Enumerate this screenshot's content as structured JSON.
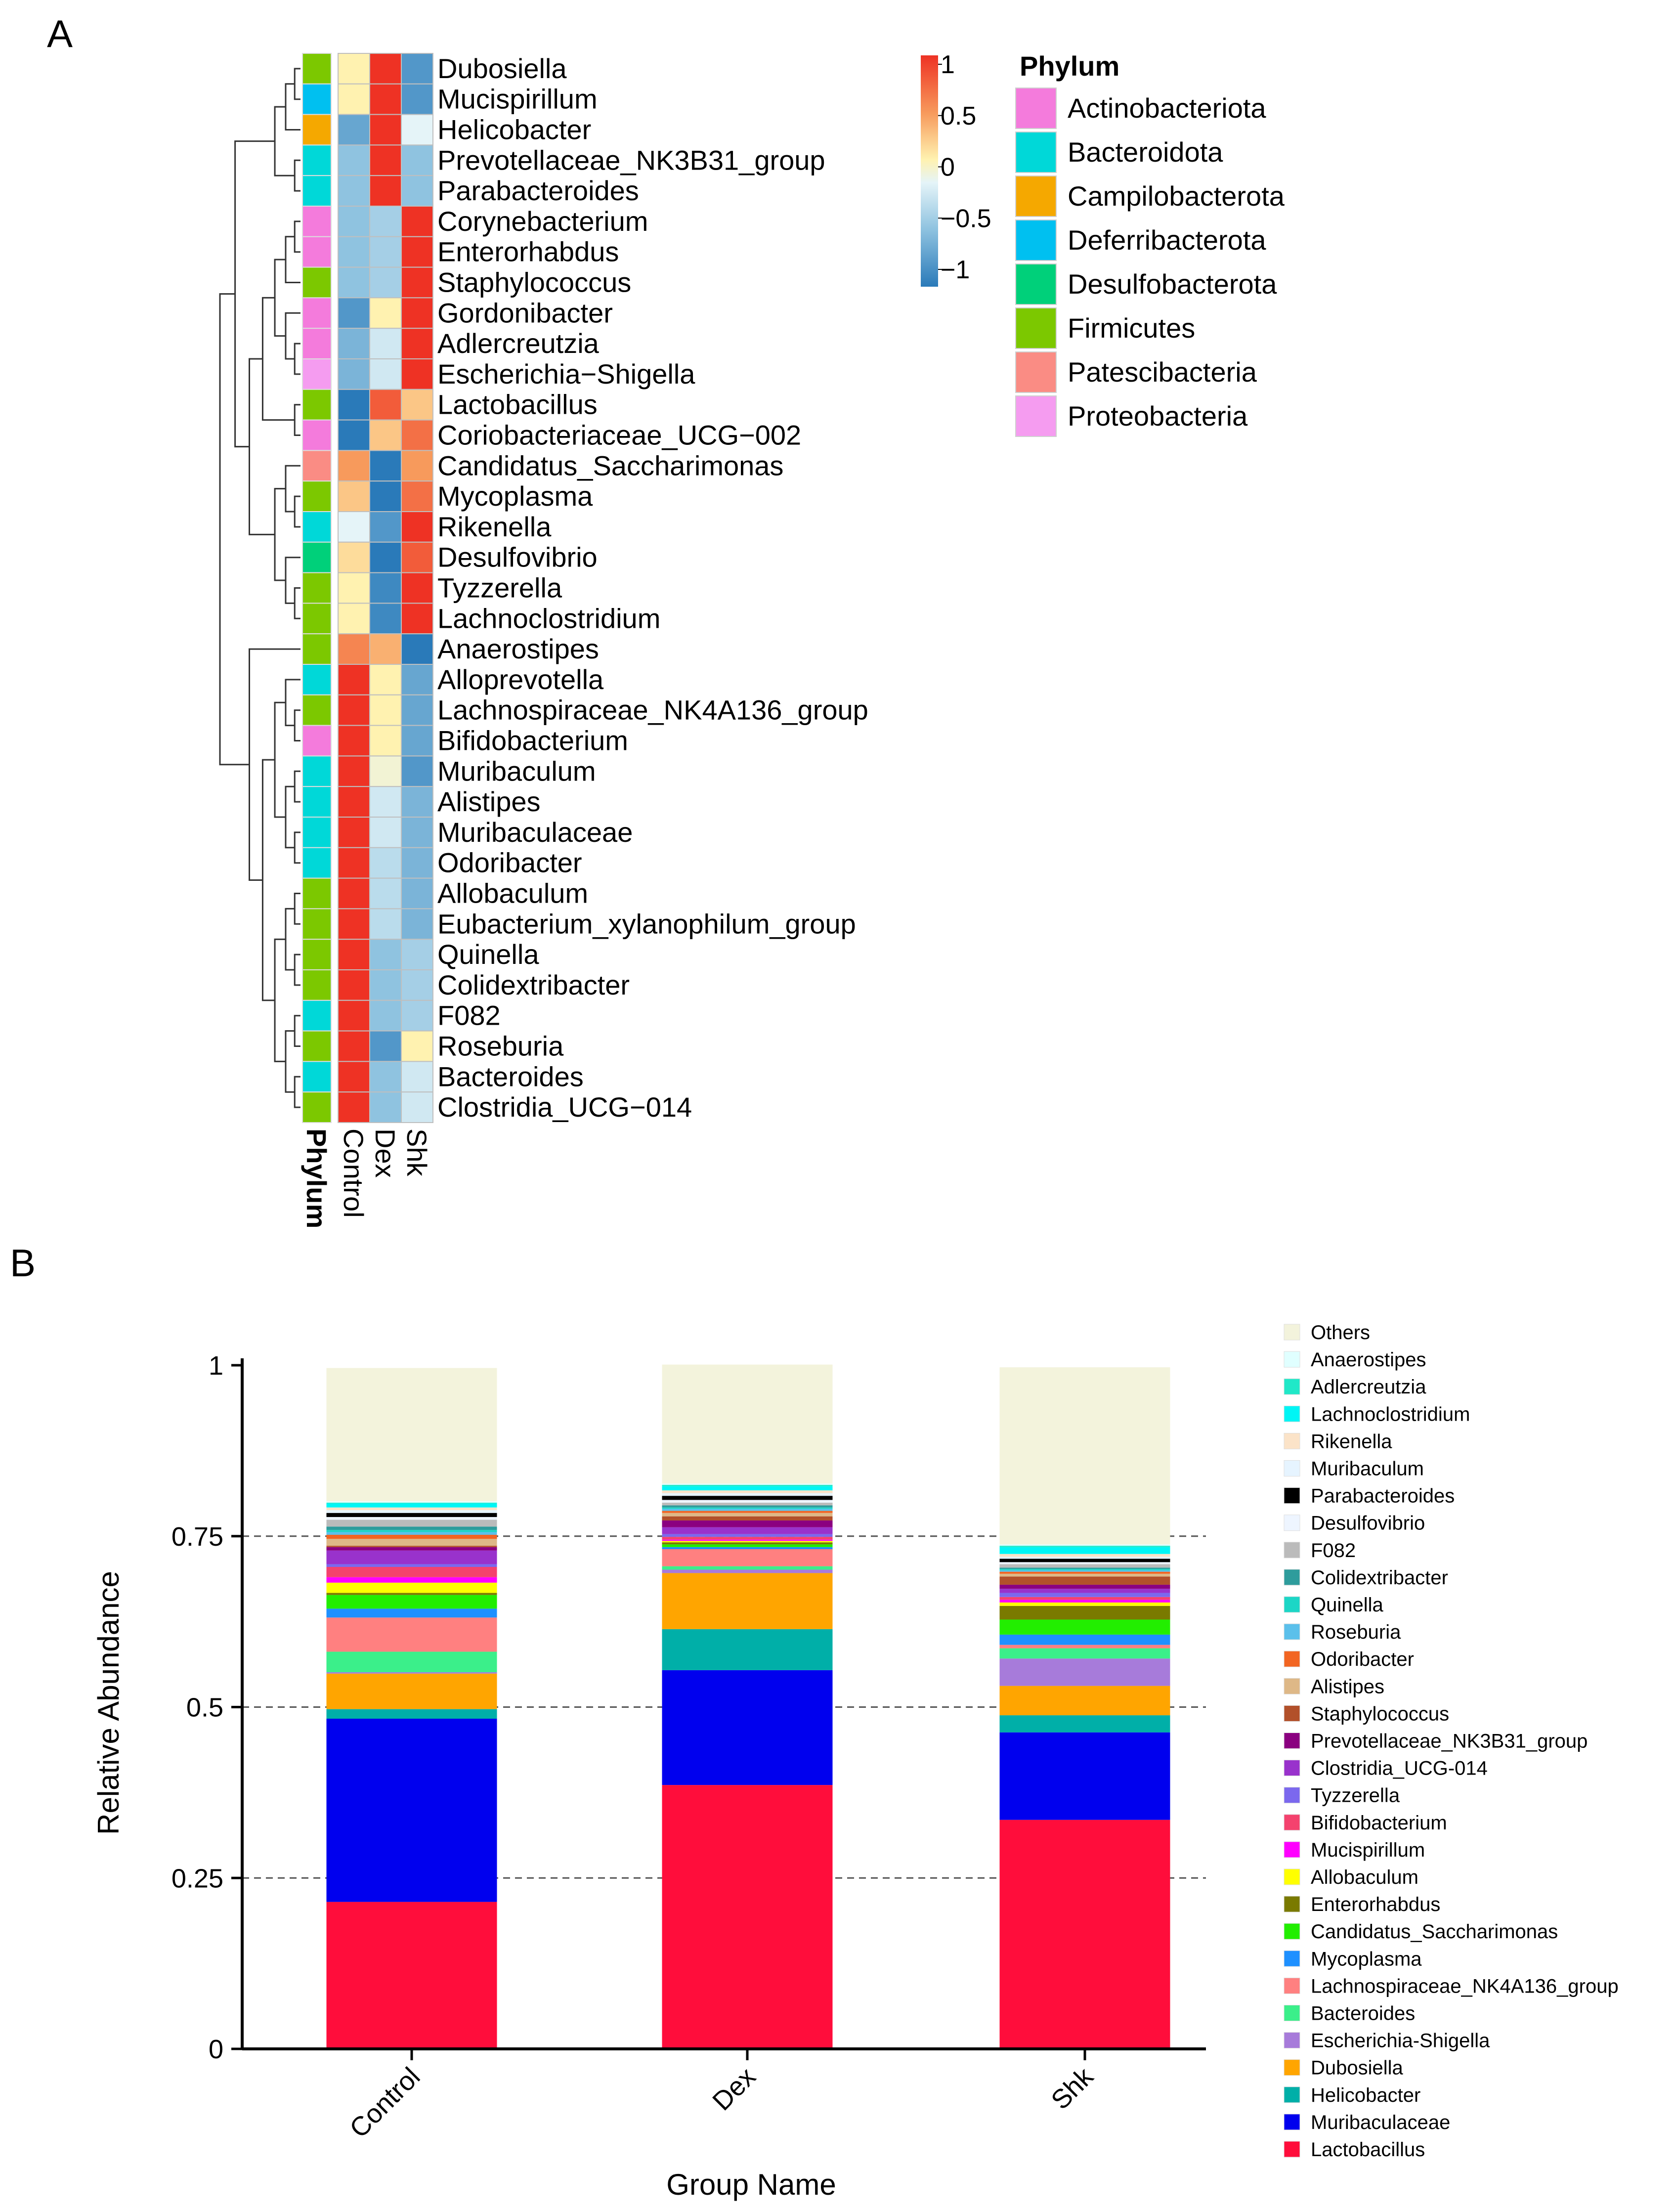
{
  "panel_a": {
    "letter": "A",
    "legend_title": "Phylum",
    "phylum_axis_label": "Phylum",
    "columns": [
      "Control",
      "Dex",
      "Shk"
    ],
    "colorbar": {
      "ticks": [
        {
          "value": 1,
          "label": "1"
        },
        {
          "value": 0.5,
          "label": "0.5"
        },
        {
          "value": 0,
          "label": "0"
        },
        {
          "value": -0.5,
          "label": "−0.5"
        },
        {
          "value": -1,
          "label": "−1"
        }
      ]
    },
    "phyla": [
      {
        "name": "Actinobacteriota",
        "color": "#F47BDC"
      },
      {
        "name": "Bacteroidota",
        "color": "#00D8D8"
      },
      {
        "name": "Campilobacterota",
        "color": "#F5A800"
      },
      {
        "name": "Deferribacterota",
        "color": "#00C0F0"
      },
      {
        "name": "Desulfobacterota",
        "color": "#00D07A"
      },
      {
        "name": "Firmicutes",
        "color": "#7CC800"
      },
      {
        "name": "Patescibacteria",
        "color": "#FA8C84"
      },
      {
        "name": "Proteobacteria",
        "color": "#F59CF0"
      }
    ],
    "rows": [
      {
        "genus": "Dubosiella",
        "phylum": "Firmicutes",
        "values": [
          0.1,
          1.0,
          -0.8
        ]
      },
      {
        "genus": "Mucispirillum",
        "phylum": "Deferribacterota",
        "values": [
          0.1,
          1.0,
          -0.8
        ]
      },
      {
        "genus": "Helicobacter",
        "phylum": "Campilobacterota",
        "values": [
          -0.7,
          1.0,
          -0.1
        ]
      },
      {
        "genus": "Prevotellaceae_NK3B31_group",
        "phylum": "Bacteroidota",
        "values": [
          -0.5,
          1.0,
          -0.5
        ]
      },
      {
        "genus": "Parabacteroides",
        "phylum": "Bacteroidota",
        "values": [
          -0.5,
          1.0,
          -0.5
        ]
      },
      {
        "genus": "Corynebacterium",
        "phylum": "Actinobacteriota",
        "values": [
          -0.5,
          -0.4,
          1.0
        ]
      },
      {
        "genus": "Enterorhabdus",
        "phylum": "Actinobacteriota",
        "values": [
          -0.5,
          -0.4,
          1.0
        ]
      },
      {
        "genus": "Staphylococcus",
        "phylum": "Firmicutes",
        "values": [
          -0.5,
          -0.4,
          1.0
        ]
      },
      {
        "genus": "Gordonibacter",
        "phylum": "Actinobacteriota",
        "values": [
          -0.8,
          0.1,
          1.0
        ]
      },
      {
        "genus": "Adlercreutzia",
        "phylum": "Actinobacteriota",
        "values": [
          -0.6,
          -0.2,
          1.0
        ]
      },
      {
        "genus": "Escherichia−Shigella",
        "phylum": "Proteobacteria",
        "values": [
          -0.6,
          -0.2,
          1.0
        ]
      },
      {
        "genus": "Lactobacillus",
        "phylum": "Firmicutes",
        "values": [
          -1.0,
          0.8,
          0.3
        ]
      },
      {
        "genus": "Coriobacteriaceae_UCG−002",
        "phylum": "Actinobacteriota",
        "values": [
          -1.0,
          0.3,
          0.7
        ]
      },
      {
        "genus": "Candidatus_Saccharimonas",
        "phylum": "Patescibacteria",
        "values": [
          0.5,
          -1.0,
          0.5
        ]
      },
      {
        "genus": "Mycoplasma",
        "phylum": "Firmicutes",
        "values": [
          0.3,
          -1.0,
          0.7
        ]
      },
      {
        "genus": "Rikenella",
        "phylum": "Bacteroidota",
        "values": [
          -0.1,
          -0.8,
          1.0
        ]
      },
      {
        "genus": "Desulfovibrio",
        "phylum": "Desulfobacterota",
        "values": [
          0.2,
          -1.0,
          0.8
        ]
      },
      {
        "genus": "Tyzzerella",
        "phylum": "Firmicutes",
        "values": [
          0.1,
          -0.9,
          1.0
        ]
      },
      {
        "genus": "Lachnoclostridium",
        "phylum": "Firmicutes",
        "values": [
          0.1,
          -0.9,
          1.0
        ]
      },
      {
        "genus": "Anaerostipes",
        "phylum": "Firmicutes",
        "values": [
          0.6,
          0.4,
          -1.0
        ]
      },
      {
        "genus": "Alloprevotella",
        "phylum": "Bacteroidota",
        "values": [
          1.0,
          0.1,
          -0.7
        ]
      },
      {
        "genus": "Lachnospiraceae_NK4A136_group",
        "phylum": "Firmicutes",
        "values": [
          1.0,
          0.1,
          -0.7
        ]
      },
      {
        "genus": "Bifidobacterium",
        "phylum": "Actinobacteriota",
        "values": [
          1.0,
          0.1,
          -0.7
        ]
      },
      {
        "genus": "Muribaculum",
        "phylum": "Bacteroidota",
        "values": [
          1.0,
          0.0,
          -0.8
        ]
      },
      {
        "genus": "Alistipes",
        "phylum": "Bacteroidota",
        "values": [
          1.0,
          -0.2,
          -0.6
        ]
      },
      {
        "genus": "Muribaculaceae",
        "phylum": "Bacteroidota",
        "values": [
          1.0,
          -0.2,
          -0.6
        ]
      },
      {
        "genus": "Odoribacter",
        "phylum": "Bacteroidota",
        "values": [
          1.0,
          -0.3,
          -0.6
        ]
      },
      {
        "genus": "Allobaculum",
        "phylum": "Firmicutes",
        "values": [
          1.0,
          -0.3,
          -0.6
        ]
      },
      {
        "genus": "Eubacterium_xylanophilum_group",
        "phylum": "Firmicutes",
        "values": [
          1.0,
          -0.3,
          -0.6
        ]
      },
      {
        "genus": "Quinella",
        "phylum": "Firmicutes",
        "values": [
          1.0,
          -0.5,
          -0.4
        ]
      },
      {
        "genus": "Colidextribacter",
        "phylum": "Firmicutes",
        "values": [
          1.0,
          -0.5,
          -0.4
        ]
      },
      {
        "genus": "F082",
        "phylum": "Bacteroidota",
        "values": [
          1.0,
          -0.5,
          -0.4
        ]
      },
      {
        "genus": "Roseburia",
        "phylum": "Firmicutes",
        "values": [
          1.0,
          -0.8,
          0.1
        ]
      },
      {
        "genus": "Bacteroides",
        "phylum": "Bacteroidota",
        "values": [
          1.0,
          -0.5,
          -0.2
        ]
      },
      {
        "genus": "Clostridia_UCG−014",
        "phylum": "Firmicutes",
        "values": [
          1.0,
          -0.5,
          -0.2
        ]
      }
    ]
  },
  "panel_b": {
    "letter": "B",
    "chart_data": {
      "type": "bar",
      "stacked": true,
      "title": "",
      "xlabel": "Group Name",
      "ylabel": "Relative Abundance",
      "ylim": [
        0,
        1
      ],
      "yticks": [
        {
          "value": 0,
          "label": "0"
        },
        {
          "value": 0.25,
          "label": "0.25"
        },
        {
          "value": 0.5,
          "label": "0.5"
        },
        {
          "value": 0.75,
          "label": "0.75"
        },
        {
          "value": 1,
          "label": "1"
        }
      ],
      "gridlines": [
        0.25,
        0.5,
        0.75
      ],
      "categories": [
        "Control",
        "Dex",
        "Shk"
      ],
      "series": [
        {
          "name": "Lactobacillus",
          "color": "#FF0D3B",
          "values": [
            0.215,
            0.386,
            0.335
          ]
        },
        {
          "name": "Muribaculaceae",
          "color": "#0000EE",
          "values": [
            0.268,
            0.168,
            0.128
          ]
        },
        {
          "name": "Helicobacter",
          "color": "#00AFA8",
          "values": [
            0.014,
            0.06,
            0.025
          ]
        },
        {
          "name": "Dubosiella",
          "color": "#FFA500",
          "values": [
            0.052,
            0.082,
            0.043
          ]
        },
        {
          "name": "Escherichia-Shigella",
          "color": "#A77BDA",
          "values": [
            0.002,
            0.005,
            0.04
          ]
        },
        {
          "name": "Bacteroides",
          "color": "#3BEF8A",
          "values": [
            0.03,
            0.005,
            0.015
          ]
        },
        {
          "name": "Lachnospiraceae_NK4A136_group",
          "color": "#FF8080",
          "values": [
            0.05,
            0.025,
            0.005
          ]
        },
        {
          "name": "Mycoplasma",
          "color": "#1E90FF",
          "values": [
            0.013,
            0.003,
            0.015
          ]
        },
        {
          "name": "Candidatus_Saccharimonas",
          "color": "#22EE00",
          "values": [
            0.02,
            0.004,
            0.022
          ]
        },
        {
          "name": "Enterorhabdus",
          "color": "#7A7A00",
          "values": [
            0.003,
            0.003,
            0.02
          ]
        },
        {
          "name": "Allobaculum",
          "color": "#FFFF00",
          "values": [
            0.015,
            0.002,
            0.005
          ]
        },
        {
          "name": "Mucispirillum",
          "color": "#FF00FF",
          "values": [
            0.008,
            0.002,
            0.004
          ]
        },
        {
          "name": "Bifidobacterium",
          "color": "#F4426E",
          "values": [
            0.015,
            0.004,
            0.004
          ]
        },
        {
          "name": "Tyzzerella",
          "color": "#7B68EE",
          "values": [
            0.004,
            0.004,
            0.006
          ]
        },
        {
          "name": "Clostridia_UCG-014",
          "color": "#9932CC",
          "values": [
            0.02,
            0.01,
            0.006
          ]
        },
        {
          "name": "Prevotellaceae_NK3B31_group",
          "color": "#8B0080",
          "values": [
            0.005,
            0.01,
            0.006
          ]
        },
        {
          "name": "Staphylococcus",
          "color": "#B2502A",
          "values": [
            0.002,
            0.006,
            0.012
          ]
        },
        {
          "name": "Alistipes",
          "color": "#DEB887",
          "values": [
            0.01,
            0.005,
            0.004
          ]
        },
        {
          "name": "Odoribacter",
          "color": "#F26522",
          "values": [
            0.006,
            0.003,
            0.003
          ]
        },
        {
          "name": "Roseburia",
          "color": "#5BC0EB",
          "values": [
            0.004,
            0.003,
            0.002
          ]
        },
        {
          "name": "Quinella",
          "color": "#1CD6C6",
          "values": [
            0.003,
            0.002,
            0.002
          ]
        },
        {
          "name": "Colidextribacter",
          "color": "#2E9C9C",
          "values": [
            0.005,
            0.003,
            0.002
          ]
        },
        {
          "name": "F082",
          "color": "#BBBBBB",
          "values": [
            0.01,
            0.004,
            0.005
          ]
        },
        {
          "name": "Desulfovibrio",
          "color": "#EEF5FF",
          "values": [
            0.004,
            0.004,
            0.003
          ]
        },
        {
          "name": "Parabacteroides",
          "color": "#000000",
          "values": [
            0.006,
            0.006,
            0.005
          ]
        },
        {
          "name": "Muribaculum",
          "color": "#E6F4FF",
          "values": [
            0.004,
            0.004,
            0.003
          ]
        },
        {
          "name": "Rikenella",
          "color": "#FBE3C8",
          "values": [
            0.004,
            0.004,
            0.004
          ]
        },
        {
          "name": "Lachnoclostridium",
          "color": "#00F5F5",
          "values": [
            0.006,
            0.006,
            0.01
          ]
        },
        {
          "name": "Adlercreutzia",
          "color": "#20E8C8",
          "values": [
            0.001,
            0.002,
            0.002
          ]
        },
        {
          "name": "Anaerostipes",
          "color": "#E0FFFF",
          "values": [
            0.002,
            0.002,
            0.002
          ]
        },
        {
          "name": "Others",
          "color": "#F3F3DC",
          "values": [
            0.195,
            0.174,
            0.259
          ]
        }
      ]
    }
  }
}
